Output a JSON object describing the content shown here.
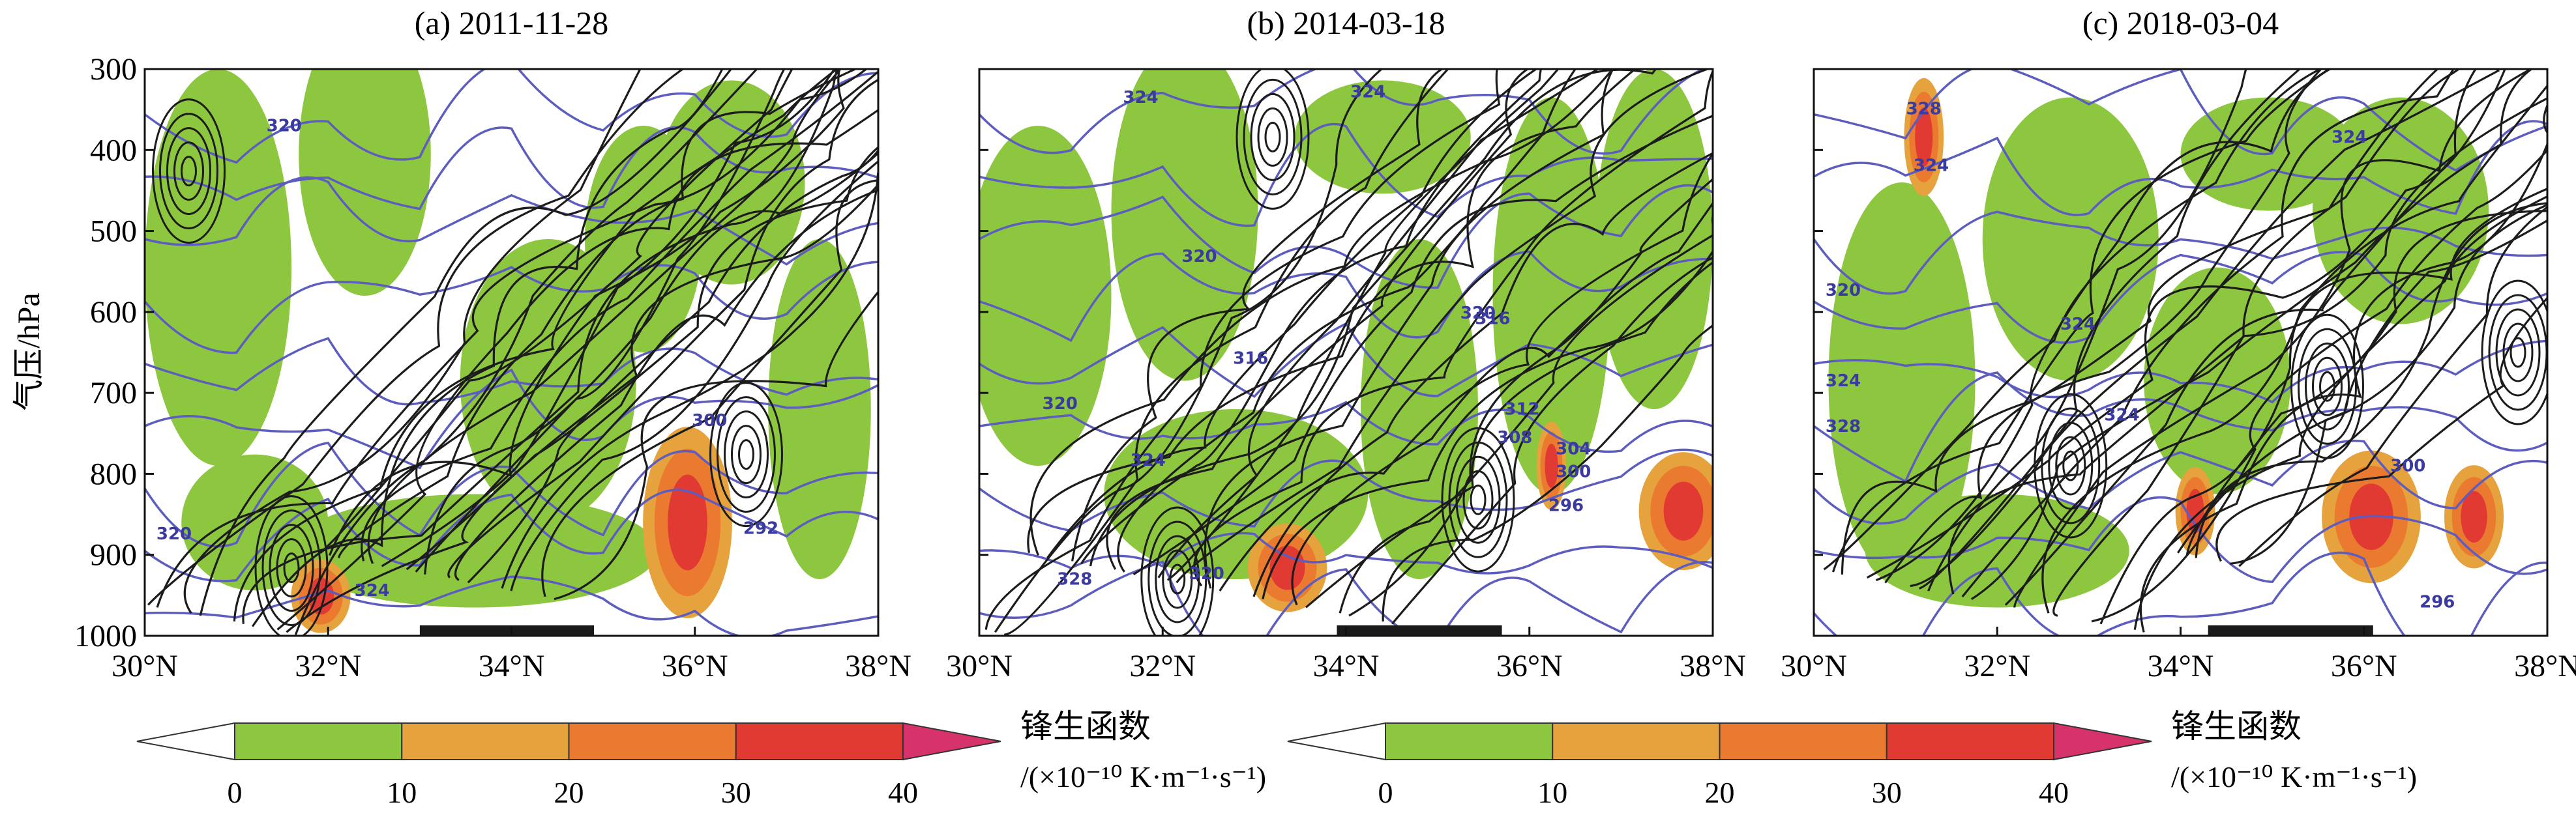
{
  "figure": {
    "ylabel": "气压/hPa",
    "y_ticks": [
      "300",
      "400",
      "500",
      "600",
      "700",
      "800",
      "900",
      "1000"
    ],
    "x_ticks": [
      "30°N",
      "32°N",
      "34°N",
      "36°N",
      "38°N"
    ]
  },
  "colorbar": {
    "title": "锋生函数",
    "unit": "/(×10⁻¹⁰ K·m⁻¹·s⁻¹)",
    "ticks": [
      "0",
      "10",
      "20",
      "30",
      "40"
    ],
    "colors": [
      "#ffffff",
      "#8dc63f",
      "#e6a23c",
      "#ea7a30",
      "#e03a33",
      "#d6336c"
    ]
  },
  "chart_data": [
    {
      "type": "heatmap",
      "title": "(a) 2011-11-28",
      "ylabel": "气压/hPa",
      "xlim": [
        30,
        38
      ],
      "ylim": [
        1000,
        300
      ],
      "contour_labels": [
        "320",
        "320",
        "324",
        "300",
        "292"
      ],
      "frontogenesis_max_class": "30-40"
    },
    {
      "type": "heatmap",
      "title": "(b) 2014-03-18",
      "xlim": [
        30,
        38
      ],
      "ylim": [
        1000,
        300
      ],
      "contour_labels": [
        "324",
        "324",
        "320",
        "316",
        "320",
        "316",
        "312",
        "308",
        "320",
        "324",
        "304",
        "300",
        "296",
        "320",
        "328"
      ],
      "frontogenesis_max_class": "30-40"
    },
    {
      "type": "heatmap",
      "title": "(c) 2018-03-04",
      "xlim": [
        30,
        38
      ],
      "ylim": [
        1000,
        300
      ],
      "contour_labels": [
        "328",
        "324",
        "324",
        "320",
        "324",
        "324",
        "328",
        "324",
        "300",
        "296"
      ],
      "frontogenesis_max_class": "30-40"
    }
  ]
}
